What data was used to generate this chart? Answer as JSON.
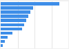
{
  "values": [
    87,
    48,
    44,
    41,
    38,
    35,
    32,
    17,
    10,
    6,
    3
  ],
  "bar_color": "#3e8ee8",
  "background_color": "#f0f0f0",
  "plot_bg_color": "#ffffff",
  "grid_color": "#d9d9d9",
  "xlim_max": 100,
  "figsize": [
    1.0,
    0.71
  ],
  "dpi": 100
}
